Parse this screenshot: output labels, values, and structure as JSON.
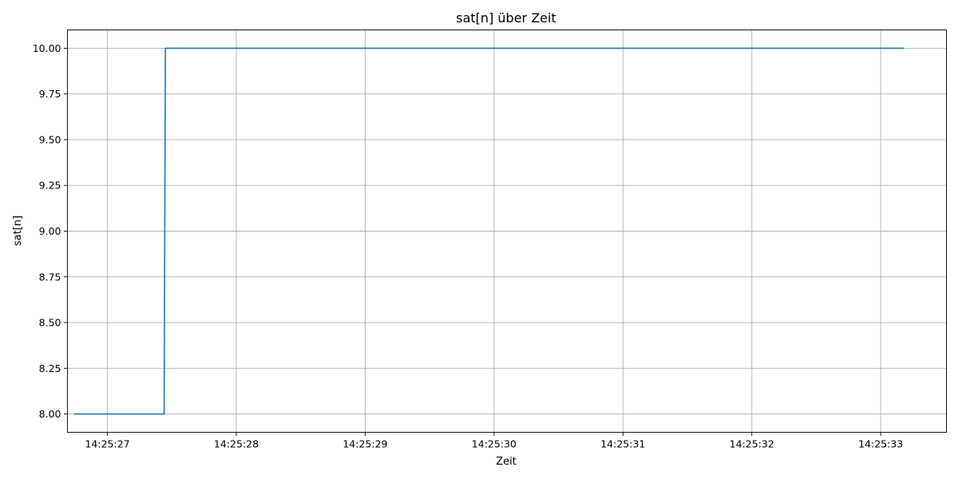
{
  "chart_data": {
    "type": "line",
    "title": "sat[n] über Zeit",
    "xlabel": "Zeit",
    "ylabel": "sat[n]",
    "x_ticks": [
      "14:25:27",
      "14:25:28",
      "14:25:29",
      "14:25:30",
      "14:25:31",
      "14:25:32",
      "14:25:33"
    ],
    "y_ticks": [
      "8.00",
      "8.25",
      "8.50",
      "8.75",
      "9.00",
      "9.25",
      "9.50",
      "9.75",
      "10.00"
    ],
    "xlim": [
      "14:25:26.690",
      "14:25:33.510"
    ],
    "ylim": [
      7.9,
      10.1
    ],
    "grid": true,
    "series": [
      {
        "color": "#1f77b4",
        "x": [
          "14:25:26.740",
          "14:25:27.440",
          "14:25:27.450",
          "14:25:33.180"
        ],
        "y": [
          8,
          8,
          10,
          10
        ]
      }
    ]
  }
}
